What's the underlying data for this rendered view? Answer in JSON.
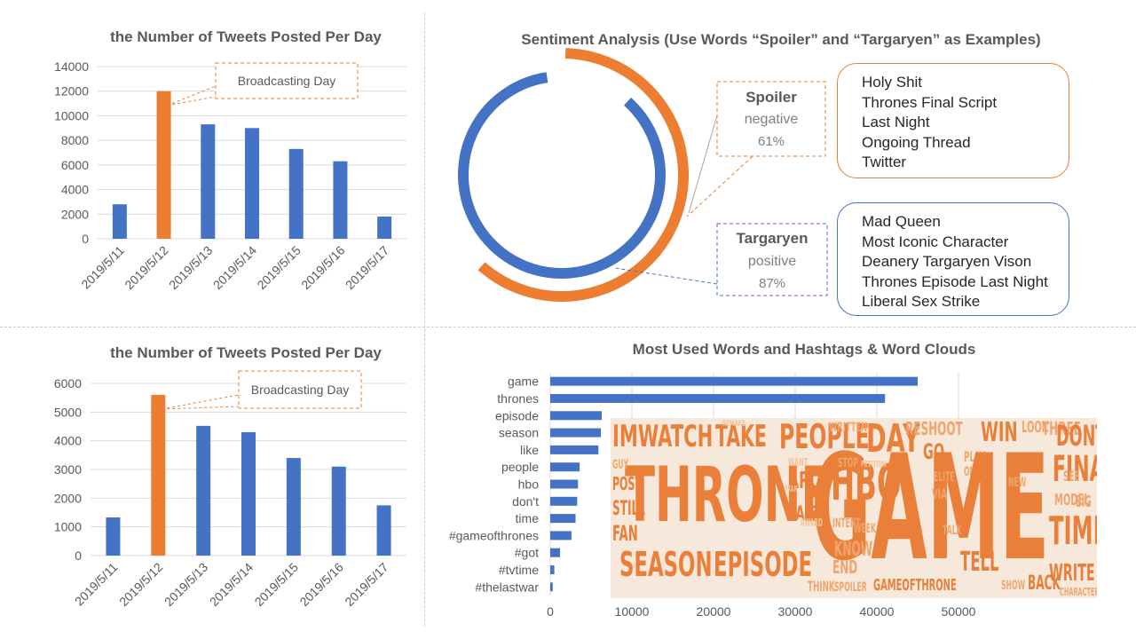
{
  "chart_data": [
    {
      "type": "bar",
      "title": "the Number of Tweets Posted Per Day",
      "categories": [
        "2019/5/11",
        "2019/5/12",
        "2019/5/13",
        "2019/5/14",
        "2019/5/15",
        "2019/5/16",
        "2019/5/17"
      ],
      "values": [
        2800,
        12000,
        9300,
        9000,
        7300,
        6300,
        1800
      ],
      "highlight_index": 1,
      "ylim": [
        0,
        14000
      ],
      "yticks": [
        0,
        2000,
        4000,
        6000,
        8000,
        10000,
        12000,
        14000
      ],
      "grid": true,
      "annotation": "Broadcasting Day",
      "colors": {
        "bar": "#4472c4",
        "highlight": "#ed7d31"
      }
    },
    {
      "type": "bar",
      "title": "the Number of Tweets Posted Per Day",
      "categories": [
        "2019/5/11",
        "2019/5/12",
        "2019/5/13",
        "2019/5/14",
        "2019/5/15",
        "2019/5/16",
        "2019/5/17"
      ],
      "values": [
        1330,
        5600,
        4520,
        4300,
        3400,
        3100,
        1750
      ],
      "highlight_index": 1,
      "ylim": [
        0,
        6000
      ],
      "yticks": [
        0,
        1000,
        2000,
        3000,
        4000,
        5000,
        6000
      ],
      "grid": true,
      "annotation": "Broadcasting Day",
      "colors": {
        "bar": "#4472c4",
        "highlight": "#ed7d31"
      }
    },
    {
      "type": "pie",
      "subtype": "radial-progress",
      "title": "Sentiment Analysis (Use Words “Spoiler” and “Targaryen” as Examples)",
      "series": [
        {
          "name": "Spoiler",
          "sentiment": "negative",
          "value": 61,
          "label": "61%",
          "color": "#ed7d31",
          "words": [
            "Holy Shit",
            "Thrones Final Script",
            "Last Night",
            "Ongoing Thread",
            "Twitter"
          ]
        },
        {
          "name": "Targaryen",
          "sentiment": "positive",
          "value": 87,
          "label": "87%",
          "color": "#4472c4",
          "words": [
            "Mad Queen",
            "Most Iconic Character",
            "Deanery Targaryen Vison",
            "Thrones Episode Last Night",
            "Liberal Sex Strike"
          ]
        }
      ]
    },
    {
      "type": "bar",
      "orientation": "horizontal",
      "title": "Most Used Words and Hashtags & Word Clouds",
      "categories": [
        "game",
        "thrones",
        "episode",
        "season",
        "like",
        "people",
        "hbo",
        "don't",
        "time",
        "#gameofthrones",
        "#got",
        "#tvtime",
        "#thelastwar"
      ],
      "values": [
        45000,
        41000,
        6300,
        6200,
        5900,
        3600,
        3400,
        3300,
        3100,
        2600,
        1200,
        500,
        300
      ],
      "xlim": [
        0,
        50000
      ],
      "xticks": [
        0,
        10000,
        20000,
        30000,
        40000,
        50000
      ],
      "grid": true,
      "colors": {
        "bar": "#4472c4"
      }
    }
  ],
  "word_cloud": {
    "color": "#ea7f3a",
    "words": [
      "IMWATCH",
      "TAKE",
      "PEOPLE",
      "WRITTEN",
      "DAY",
      "RESHOOT",
      "WIN",
      "LOOK",
      "THREE",
      "DONT",
      "REMAKE",
      "GO",
      "PLAY",
      "ONE",
      "THRONE",
      "HBO",
      "GAME",
      "FINAL",
      "GUY",
      "POST",
      "STILL",
      "FAN",
      "ARC",
      "LAST",
      "WANT",
      "STOP",
      "PETITION",
      "ELITE",
      "VIA",
      "NEW",
      "SEE",
      "MODEL",
      "BIG",
      "TIME",
      "SEASON",
      "EPISODE",
      "INTENT",
      "KNOW",
      "WEEK",
      "TALK",
      "END",
      "TELL",
      "WRITE",
      "THINK",
      "SPOILER",
      "GAMEOFTHRONE",
      "SHOW",
      "BACK",
      "CHARACTER",
      "AWARD",
      "STAR"
    ]
  }
}
